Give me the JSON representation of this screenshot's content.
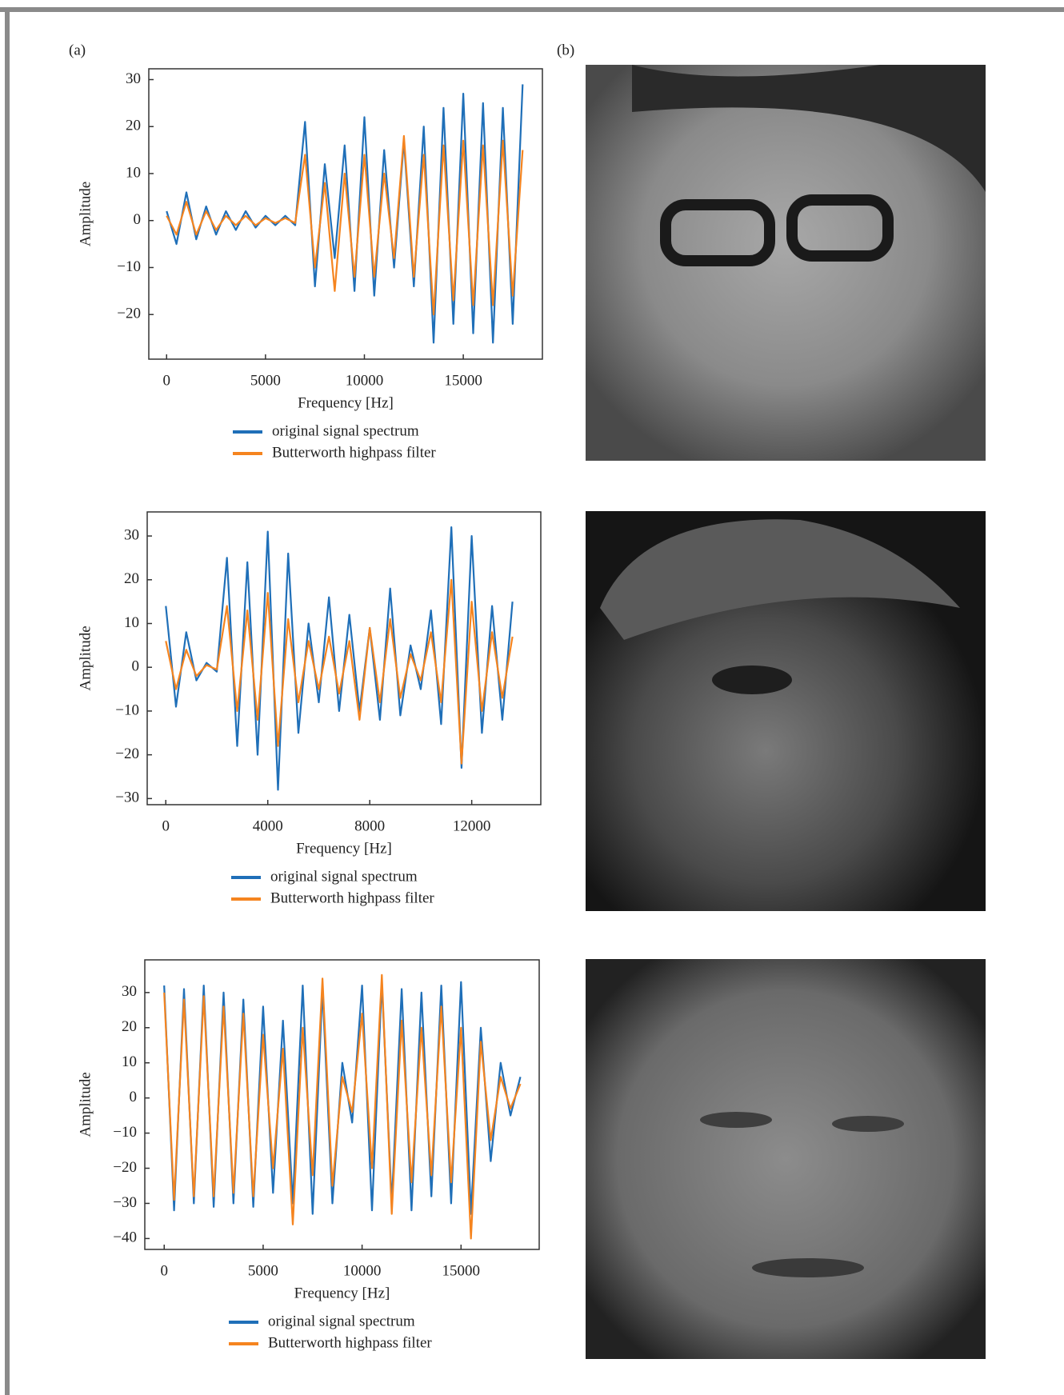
{
  "panel_labels": {
    "a": "(a)",
    "b": "(b)"
  },
  "chart_data": [
    {
      "type": "line",
      "xlabel": "Frequency [Hz]",
      "ylabel": "Amplitude",
      "legend": "below",
      "xlim": [
        -900,
        19000
      ],
      "ylim": [
        -29.5,
        32.3
      ],
      "xticks": [
        0,
        5000,
        10000,
        15000
      ],
      "yticks": [
        {
          "value": -20,
          "label": "−20"
        },
        {
          "value": -10,
          "label": "−10"
        },
        0,
        10,
        20,
        30
      ],
      "x": [
        0,
        500,
        1000,
        1500,
        2000,
        2500,
        3000,
        3500,
        4000,
        4500,
        5000,
        5500,
        6000,
        6500,
        7000,
        7500,
        8000,
        8500,
        9000,
        9500,
        10000,
        10500,
        11000,
        11500,
        12000,
        12500,
        13000,
        13500,
        14000,
        14500,
        15000,
        15500,
        16000,
        16500,
        17000,
        17500,
        18000
      ],
      "series": [
        {
          "name": "original signal spectrum",
          "color": "#1f6fb8",
          "values": [
            2,
            -5,
            6,
            -4,
            3,
            -3,
            2,
            -2,
            2,
            -1.5,
            1,
            -1,
            1,
            -1,
            21,
            -14,
            12,
            -8,
            16,
            -15,
            22,
            -16,
            15,
            -10,
            17,
            -14,
            20,
            -26,
            24,
            -22,
            27,
            -24,
            25,
            -26,
            24,
            -22,
            29
          ]
        },
        {
          "name": "Butterworth highpass filter",
          "color": "#f5841f",
          "values": [
            1,
            -3,
            4,
            -3,
            2,
            -2,
            1,
            -1,
            1,
            -1,
            0.5,
            -0.5,
            0.5,
            -0.5,
            14,
            -10,
            8,
            -15,
            10,
            -12,
            14,
            -12,
            10,
            -8,
            18,
            -12,
            14,
            -20,
            16,
            -17,
            17,
            -18,
            16,
            -18,
            17,
            -16,
            15
          ]
        }
      ]
    },
    {
      "type": "line",
      "xlabel": "Frequency [Hz]",
      "ylabel": "Amplitude",
      "legend": "below",
      "xlim": [
        -730,
        14710
      ],
      "ylim": [
        -31.4,
        35.5
      ],
      "xticks": [
        0,
        4000,
        8000,
        12000
      ],
      "yticks": [
        {
          "value": -30,
          "label": "−30"
        },
        {
          "value": -20,
          "label": "−20"
        },
        {
          "value": -10,
          "label": "−10"
        },
        0,
        10,
        20,
        30
      ],
      "x": [
        0,
        400,
        800,
        1200,
        1600,
        2000,
        2400,
        2800,
        3200,
        3600,
        4000,
        4400,
        4800,
        5200,
        5600,
        6000,
        6400,
        6800,
        7200,
        7600,
        8000,
        8400,
        8800,
        9200,
        9600,
        10000,
        10400,
        10800,
        11200,
        11600,
        12000,
        12400,
        12800,
        13200,
        13600
      ],
      "series": [
        {
          "name": "original signal spectrum",
          "color": "#1f6fb8",
          "values": [
            14,
            -9,
            8,
            -3,
            1,
            -1,
            25,
            -18,
            24,
            -20,
            31,
            -28,
            26,
            -15,
            10,
            -8,
            16,
            -10,
            12,
            -10,
            9,
            -12,
            18,
            -11,
            5,
            -5,
            13,
            -13,
            32,
            -23,
            30,
            -15,
            14,
            -12,
            15
          ]
        },
        {
          "name": "Butterworth highpass filter",
          "color": "#f5841f",
          "values": [
            6,
            -5,
            4,
            -2,
            0.5,
            -0.5,
            14,
            -10,
            13,
            -12,
            17,
            -18,
            11,
            -8,
            6,
            -5,
            7,
            -6,
            6,
            -12,
            9,
            -8,
            11,
            -7,
            3,
            -3,
            8,
            -8,
            20,
            -22,
            15,
            -10,
            8,
            -7,
            7
          ]
        }
      ]
    },
    {
      "type": "line",
      "xlabel": "Frequency [Hz]",
      "ylabel": "Amplitude",
      "legend": "below",
      "xlim": [
        -980,
        18950
      ],
      "ylim": [
        -43.1,
        39.3
      ],
      "xticks": [
        0,
        5000,
        10000,
        15000
      ],
      "yticks": [
        {
          "value": -40,
          "label": "−40"
        },
        {
          "value": -30,
          "label": "−30"
        },
        {
          "value": -20,
          "label": "−20"
        },
        {
          "value": -10,
          "label": "−10"
        },
        0,
        10,
        20,
        30
      ],
      "x": [
        0,
        500,
        1000,
        1500,
        2000,
        2500,
        3000,
        3500,
        4000,
        4500,
        5000,
        5500,
        6000,
        6500,
        7000,
        7500,
        8000,
        8500,
        9000,
        9500,
        10000,
        10500,
        11000,
        11500,
        12000,
        12500,
        13000,
        13500,
        14000,
        14500,
        15000,
        15500,
        16000,
        16500,
        17000,
        17500,
        18000
      ],
      "series": [
        {
          "name": "original signal spectrum",
          "color": "#1f6fb8",
          "values": [
            32,
            -32,
            31,
            -30,
            32,
            -31,
            30,
            -30,
            28,
            -31,
            26,
            -27,
            22,
            -30,
            32,
            -33,
            31,
            -30,
            10,
            -7,
            32,
            -32,
            33,
            -30,
            31,
            -32,
            30,
            -28,
            32,
            -30,
            33,
            -33,
            20,
            -18,
            10,
            -5,
            6
          ]
        },
        {
          "name": "Butterworth highpass filter",
          "color": "#f5841f",
          "values": [
            30,
            -29,
            28,
            -28,
            29,
            -28,
            26,
            -27,
            24,
            -28,
            18,
            -20,
            14,
            -36,
            20,
            -22,
            34,
            -25,
            6,
            -4,
            24,
            -20,
            35,
            -33,
            22,
            -24,
            20,
            -22,
            26,
            -24,
            20,
            -40,
            16,
            -12,
            6,
            -3,
            4
          ]
        }
      ]
    }
  ]
}
